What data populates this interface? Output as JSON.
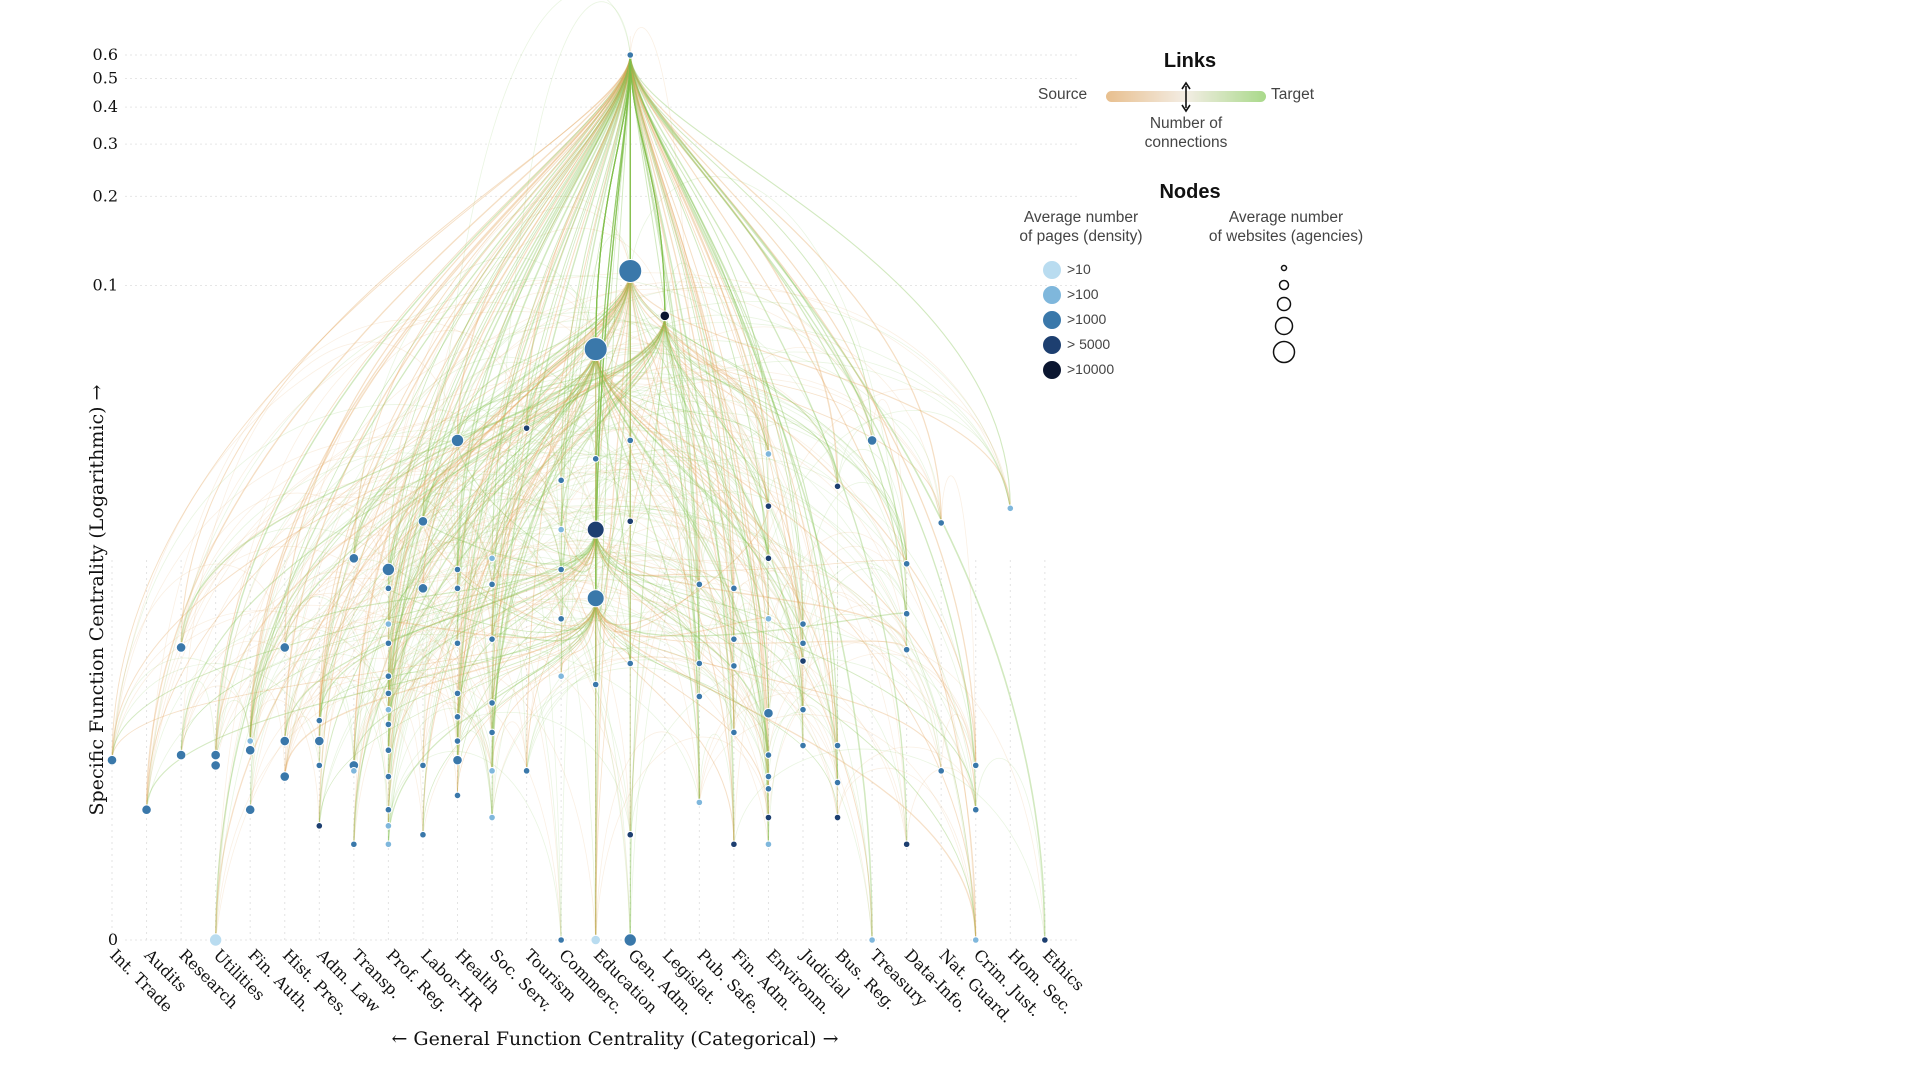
{
  "chart_data": {
    "type": "network",
    "xlabel": "← General Function Centrality (Categorical) →",
    "ylabel": "Specific Function Centrality (Logarithmic) →",
    "y_scale": "log",
    "y_ticks": [
      0,
      0.1,
      0.2,
      0.3,
      0.4,
      0.5,
      0.6
    ],
    "y_tick_labels": [
      "0",
      "0.1",
      "0.2",
      "0.3",
      "0.4",
      "0.5",
      "0.6"
    ],
    "categories": [
      "Int. Trade",
      "Audits",
      "Research",
      "Utilities",
      "Fin. Auth.",
      "Hist. Pres.",
      "Adm. Law",
      "Transp.",
      "Prof. Reg.",
      "Labor-HR",
      "Health",
      "Soc. Serv.",
      "Tourism",
      "Commerc.",
      "Education",
      "Gen. Adm.",
      "Legislat.",
      "Pub. Safe.",
      "Fin. Adm.",
      "Environm.",
      "Judicial",
      "Bus. Reg.",
      "Treasury",
      "Data-Info.",
      "Nat. Guard.",
      "Crim. Just.",
      "Hom. Sec.",
      "Ethics"
    ],
    "hub": {
      "category": "Gen. Adm.",
      "y": 0.6
    },
    "nodes": [
      {
        "c": 0,
        "y": 0.0025,
        "d": 3,
        "s": 1
      },
      {
        "c": 1,
        "y": 0.0017,
        "d": 3,
        "s": 1
      },
      {
        "c": 2,
        "y": 0.0026,
        "d": 3,
        "s": 1
      },
      {
        "c": 2,
        "y": 0.006,
        "d": 3,
        "s": 1
      },
      {
        "c": 3,
        "y": 0.0026,
        "d": 3,
        "s": 1
      },
      {
        "c": 3,
        "y": 0.0024,
        "d": 3,
        "s": 1
      },
      {
        "c": 3,
        "y": 0,
        "d": 1,
        "s": 2
      },
      {
        "c": 4,
        "y": 0.0017,
        "d": 3,
        "s": 1
      },
      {
        "c": 4,
        "y": 0.0027,
        "d": 3,
        "s": 1
      },
      {
        "c": 4,
        "y": 0.0029,
        "d": 2,
        "s": 0
      },
      {
        "c": 5,
        "y": 0.006,
        "d": 3,
        "s": 1
      },
      {
        "c": 5,
        "y": 0.0029,
        "d": 3,
        "s": 1
      },
      {
        "c": 5,
        "y": 0.0022,
        "d": 3,
        "s": 1
      },
      {
        "c": 6,
        "y": 0.0034,
        "d": 3,
        "s": 0
      },
      {
        "c": 6,
        "y": 0.0029,
        "d": 3,
        "s": 1
      },
      {
        "c": 6,
        "y": 0.0024,
        "d": 3,
        "s": 0
      },
      {
        "c": 6,
        "y": 0.0015,
        "d": 4,
        "s": 0
      },
      {
        "c": 7,
        "y": 0.012,
        "d": 3,
        "s": 1
      },
      {
        "c": 7,
        "y": 0.0024,
        "d": 3,
        "s": 1
      },
      {
        "c": 7,
        "y": 0.0023,
        "d": 2,
        "s": 0
      },
      {
        "c": 7,
        "y": 0.0013,
        "d": 3,
        "s": 0
      },
      {
        "c": 8,
        "y": 0.011,
        "d": 3,
        "s": 2
      },
      {
        "c": 8,
        "y": 0.0095,
        "d": 3,
        "s": 0
      },
      {
        "c": 8,
        "y": 0.0072,
        "d": 2,
        "s": 0
      },
      {
        "c": 8,
        "y": 0.0062,
        "d": 3,
        "s": 0
      },
      {
        "c": 8,
        "y": 0.0048,
        "d": 3,
        "s": 0
      },
      {
        "c": 8,
        "y": 0.0042,
        "d": 3,
        "s": 0
      },
      {
        "c": 8,
        "y": 0.0037,
        "d": 2,
        "s": 0
      },
      {
        "c": 8,
        "y": 0.0033,
        "d": 3,
        "s": 0
      },
      {
        "c": 8,
        "y": 0.0027,
        "d": 3,
        "s": 0
      },
      {
        "c": 8,
        "y": 0.0022,
        "d": 3,
        "s": 0
      },
      {
        "c": 8,
        "y": 0.0017,
        "d": 3,
        "s": 0
      },
      {
        "c": 8,
        "y": 0.0015,
        "d": 2,
        "s": 0
      },
      {
        "c": 8,
        "y": 0.0013,
        "d": 2,
        "s": 0
      },
      {
        "c": 9,
        "y": 0.016,
        "d": 3,
        "s": 1
      },
      {
        "c": 9,
        "y": 0.0095,
        "d": 3,
        "s": 1
      },
      {
        "c": 9,
        "y": 0.0024,
        "d": 3,
        "s": 0
      },
      {
        "c": 9,
        "y": 0.0014,
        "d": 3,
        "s": 0
      },
      {
        "c": 10,
        "y": 0.03,
        "d": 3,
        "s": 2
      },
      {
        "c": 10,
        "y": 0.011,
        "d": 3,
        "s": 0
      },
      {
        "c": 10,
        "y": 0.0095,
        "d": 3,
        "s": 0
      },
      {
        "c": 10,
        "y": 0.0062,
        "d": 3,
        "s": 0
      },
      {
        "c": 10,
        "y": 0.0042,
        "d": 3,
        "s": 0
      },
      {
        "c": 10,
        "y": 0.0035,
        "d": 3,
        "s": 0
      },
      {
        "c": 10,
        "y": 0.0029,
        "d": 3,
        "s": 0
      },
      {
        "c": 10,
        "y": 0.0025,
        "d": 3,
        "s": 1
      },
      {
        "c": 10,
        "y": 0.0019,
        "d": 3,
        "s": 0
      },
      {
        "c": 11,
        "y": 0.012,
        "d": 2,
        "s": 0
      },
      {
        "c": 11,
        "y": 0.0098,
        "d": 3,
        "s": 0
      },
      {
        "c": 11,
        "y": 0.0064,
        "d": 3,
        "s": 0
      },
      {
        "c": 11,
        "y": 0.0039,
        "d": 3,
        "s": 0
      },
      {
        "c": 11,
        "y": 0.0031,
        "d": 3,
        "s": 0
      },
      {
        "c": 11,
        "y": 0.0023,
        "d": 2,
        "s": 0
      },
      {
        "c": 11,
        "y": 0.0016,
        "d": 2,
        "s": 0
      },
      {
        "c": 12,
        "y": 0.033,
        "d": 4,
        "s": 0
      },
      {
        "c": 12,
        "y": 0.0023,
        "d": 3,
        "s": 0
      },
      {
        "c": 13,
        "y": 0.022,
        "d": 3,
        "s": 0
      },
      {
        "c": 13,
        "y": 0.015,
        "d": 2,
        "s": 0
      },
      {
        "c": 13,
        "y": 0.011,
        "d": 3,
        "s": 0
      },
      {
        "c": 13,
        "y": 0.0075,
        "d": 3,
        "s": 0
      },
      {
        "c": 13,
        "y": 0.0048,
        "d": 2,
        "s": 0
      },
      {
        "c": 13,
        "y": 0,
        "d": 3,
        "s": 0
      },
      {
        "c": 14,
        "y": 0.061,
        "d": 3,
        "s": 4
      },
      {
        "c": 14,
        "y": 0.026,
        "d": 3,
        "s": 0
      },
      {
        "c": 14,
        "y": 0.015,
        "d": 4,
        "s": 3
      },
      {
        "c": 14,
        "y": 0.0088,
        "d": 3,
        "s": 3
      },
      {
        "c": 14,
        "y": 0.0045,
        "d": 3,
        "s": 0
      },
      {
        "c": 14,
        "y": 0,
        "d": 1,
        "s": 1
      },
      {
        "c": 15,
        "y": 0.6,
        "d": 3,
        "s": 0
      },
      {
        "c": 15,
        "y": 0.112,
        "d": 3,
        "s": 4
      },
      {
        "c": 15,
        "y": 0.03,
        "d": 3,
        "s": 0
      },
      {
        "c": 15,
        "y": 0.016,
        "d": 4,
        "s": 0
      },
      {
        "c": 15,
        "y": 0.0053,
        "d": 3,
        "s": 0
      },
      {
        "c": 15,
        "y": 0.0014,
        "d": 4,
        "s": 0
      },
      {
        "c": 15,
        "y": 0,
        "d": 3,
        "s": 2
      },
      {
        "c": 16,
        "y": 0.079,
        "d": 5,
        "s": 1
      },
      {
        "c": 17,
        "y": 0.0098,
        "d": 3,
        "s": 0
      },
      {
        "c": 17,
        "y": 0.0053,
        "d": 3,
        "s": 0
      },
      {
        "c": 17,
        "y": 0.0041,
        "d": 3,
        "s": 0
      },
      {
        "c": 17,
        "y": 0.0018,
        "d": 2,
        "s": 0
      },
      {
        "c": 18,
        "y": 0.0095,
        "d": 3,
        "s": 0
      },
      {
        "c": 18,
        "y": 0.0064,
        "d": 3,
        "s": 0
      },
      {
        "c": 18,
        "y": 0.0052,
        "d": 3,
        "s": 0
      },
      {
        "c": 18,
        "y": 0.0031,
        "d": 3,
        "s": 0
      },
      {
        "c": 18,
        "y": 0.0013,
        "d": 4,
        "s": 0
      },
      {
        "c": 19,
        "y": 0.027,
        "d": 2,
        "s": 0
      },
      {
        "c": 19,
        "y": 0.018,
        "d": 4,
        "s": 0
      },
      {
        "c": 19,
        "y": 0.012,
        "d": 4,
        "s": 0
      },
      {
        "c": 19,
        "y": 0.0075,
        "d": 2,
        "s": 0
      },
      {
        "c": 19,
        "y": 0.0036,
        "d": 3,
        "s": 1
      },
      {
        "c": 19,
        "y": 0.0026,
        "d": 3,
        "s": 0
      },
      {
        "c": 19,
        "y": 0.0022,
        "d": 3,
        "s": 0
      },
      {
        "c": 19,
        "y": 0.002,
        "d": 3,
        "s": 0
      },
      {
        "c": 19,
        "y": 0.0016,
        "d": 4,
        "s": 0
      },
      {
        "c": 19,
        "y": 0.0013,
        "d": 2,
        "s": 0
      },
      {
        "c": 20,
        "y": 0.0072,
        "d": 3,
        "s": 0
      },
      {
        "c": 20,
        "y": 0.0062,
        "d": 3,
        "s": 0
      },
      {
        "c": 20,
        "y": 0.0054,
        "d": 4,
        "s": 0
      },
      {
        "c": 20,
        "y": 0.0037,
        "d": 3,
        "s": 0
      },
      {
        "c": 20,
        "y": 0.0028,
        "d": 3,
        "s": 0
      },
      {
        "c": 21,
        "y": 0.021,
        "d": 4,
        "s": 0
      },
      {
        "c": 21,
        "y": 0.0028,
        "d": 3,
        "s": 0
      },
      {
        "c": 21,
        "y": 0.0021,
        "d": 3,
        "s": 0
      },
      {
        "c": 21,
        "y": 0.0016,
        "d": 4,
        "s": 0
      },
      {
        "c": 22,
        "y": 0.03,
        "d": 3,
        "s": 1
      },
      {
        "c": 22,
        "y": 0,
        "d": 2,
        "s": 0
      },
      {
        "c": 23,
        "y": 0.0115,
        "d": 3,
        "s": 0
      },
      {
        "c": 23,
        "y": 0.0078,
        "d": 3,
        "s": 0
      },
      {
        "c": 23,
        "y": 0.0059,
        "d": 3,
        "s": 0
      },
      {
        "c": 23,
        "y": 0.0013,
        "d": 4,
        "s": 0
      },
      {
        "c": 24,
        "y": 0.0158,
        "d": 3,
        "s": 0
      },
      {
        "c": 24,
        "y": 0.0023,
        "d": 3,
        "s": 0
      },
      {
        "c": 25,
        "y": 0.0024,
        "d": 3,
        "s": 0
      },
      {
        "c": 25,
        "y": 0.0017,
        "d": 3,
        "s": 0
      },
      {
        "c": 25,
        "y": 0,
        "d": 2,
        "s": 0
      },
      {
        "c": 26,
        "y": 0.0177,
        "d": 2,
        "s": 0
      },
      {
        "c": 27,
        "y": 0,
        "d": 4,
        "s": 0
      }
    ]
  },
  "legend": {
    "links_title": "Links",
    "source_label": "Source",
    "target_label": "Target",
    "connections_label_line1": "Number of",
    "connections_label_line2": "connections",
    "nodes_title": "Nodes",
    "density_title_line1": "Average number",
    "density_title_line2": "of pages (density)",
    "agencies_title_line1": "Average number",
    "agencies_title_line2": "of websites (agencies)",
    "density_levels": [
      ">10",
      ">100",
      ">1000",
      "> 5000",
      ">10000"
    ]
  },
  "colors": {
    "density": [
      "#b9dcf0",
      "#7fb7dc",
      "#3a78aa",
      "#1d3f70",
      "#0b1630"
    ],
    "source": "#e3a45a",
    "target": "#7fbf4a"
  }
}
